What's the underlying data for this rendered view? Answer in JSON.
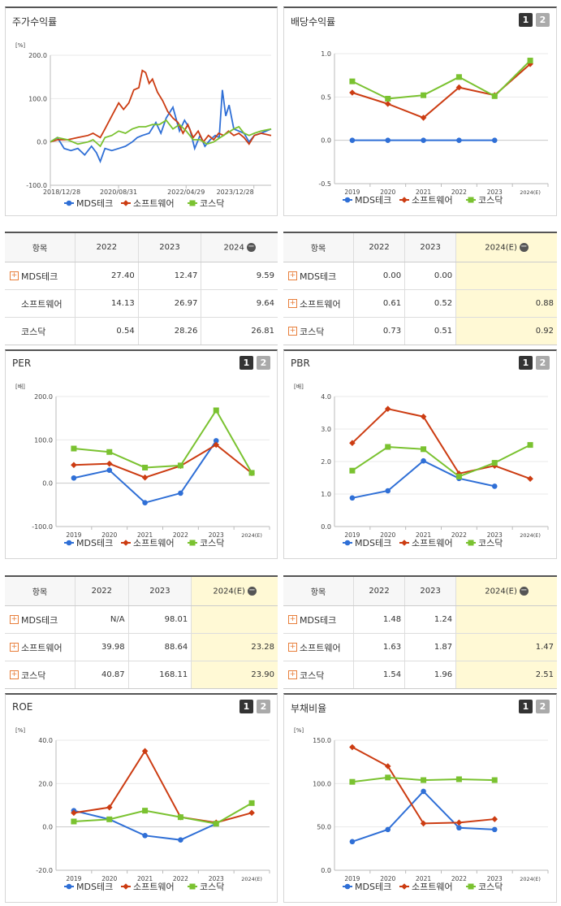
{
  "colors": {
    "MDS": "#2f6fd6",
    "SW": "#cc3c12",
    "KQ": "#7ac230"
  },
  "pager": {
    "one": "1",
    "two": "2"
  },
  "chart_data": [
    {
      "id": "price",
      "type": "line",
      "title": "주가수익률",
      "unit": "[%]",
      "ylim": [
        -100,
        200
      ],
      "yticks": [
        "200.0",
        "100.0",
        "0.0",
        "-100.0"
      ],
      "ytick_values": [
        200,
        100,
        0,
        -100
      ],
      "xticks": [
        "2018/12/28",
        "2020/08/31",
        "2022/04/29",
        "2023/12/28"
      ],
      "xrange": [
        "2018-12-28",
        "2024-05-31"
      ],
      "xtick_dates": [
        "2018-12-28",
        "2020-08-31",
        "2022-04-29",
        "2023-12-28"
      ],
      "series": [
        {
          "name": "MDS테크",
          "color_key": "MDS",
          "marker": "circle",
          "x": [
            "2018-12-28",
            "2019-03-01",
            "2019-05-01",
            "2019-07-01",
            "2019-09-01",
            "2019-11-01",
            "2020-01-01",
            "2020-02-15",
            "2020-03-20",
            "2020-05-01",
            "2020-07-01",
            "2020-09-01",
            "2020-11-01",
            "2021-01-01",
            "2021-02-15",
            "2021-04-01",
            "2021-06-01",
            "2021-08-01",
            "2021-09-15",
            "2021-11-01",
            "2022-01-01",
            "2022-03-01",
            "2022-04-15",
            "2022-06-01",
            "2022-07-15",
            "2022-09-01",
            "2022-10-15",
            "2022-12-01",
            "2023-01-15",
            "2023-02-20",
            "2023-03-20",
            "2023-04-20",
            "2023-05-20",
            "2023-07-01",
            "2023-08-15",
            "2023-10-01",
            "2023-11-15",
            "2024-01-01",
            "2024-03-01",
            "2024-05-31"
          ],
          "y": [
            0,
            10,
            -15,
            -20,
            -15,
            -30,
            -10,
            -25,
            -45,
            -15,
            -20,
            -15,
            -10,
            0,
            10,
            15,
            20,
            45,
            20,
            55,
            80,
            25,
            50,
            30,
            -15,
            15,
            -10,
            5,
            15,
            10,
            120,
            60,
            85,
            30,
            25,
            20,
            0,
            15,
            20,
            30
          ]
        },
        {
          "name": "소프트웨어",
          "color_key": "SW",
          "marker": "diamond",
          "x": [
            "2018-12-28",
            "2019-03-01",
            "2019-06-01",
            "2019-09-01",
            "2019-12-01",
            "2020-01-15",
            "2020-03-20",
            "2020-05-01",
            "2020-07-01",
            "2020-09-01",
            "2020-10-15",
            "2020-12-01",
            "2021-01-15",
            "2021-03-01",
            "2021-04-01",
            "2021-05-01",
            "2021-06-01",
            "2021-07-01",
            "2021-08-15",
            "2021-10-01",
            "2021-11-15",
            "2022-01-01",
            "2022-02-15",
            "2022-04-01",
            "2022-05-15",
            "2022-07-01",
            "2022-08-15",
            "2022-10-01",
            "2022-11-15",
            "2023-01-01",
            "2023-02-15",
            "2023-04-01",
            "2023-05-15",
            "2023-07-01",
            "2023-08-15",
            "2023-10-01",
            "2023-11-15",
            "2024-01-01",
            "2024-03-01",
            "2024-05-31"
          ],
          "y": [
            0,
            5,
            5,
            10,
            15,
            20,
            10,
            30,
            60,
            90,
            75,
            90,
            120,
            125,
            165,
            160,
            135,
            145,
            115,
            95,
            70,
            55,
            45,
            20,
            40,
            10,
            25,
            0,
            15,
            5,
            20,
            15,
            25,
            15,
            20,
            10,
            -5,
            15,
            20,
            15
          ]
        },
        {
          "name": "코스닥",
          "color_key": "KQ",
          "marker": "square",
          "x": [
            "2018-12-28",
            "2019-03-01",
            "2019-06-01",
            "2019-09-01",
            "2019-12-01",
            "2020-01-15",
            "2020-03-20",
            "2020-05-01",
            "2020-07-01",
            "2020-09-01",
            "2020-11-01",
            "2021-01-01",
            "2021-03-01",
            "2021-05-01",
            "2021-07-01",
            "2021-09-01",
            "2021-11-01",
            "2022-01-01",
            "2022-03-01",
            "2022-05-01",
            "2022-07-01",
            "2022-09-01",
            "2022-11-01",
            "2023-01-01",
            "2023-03-01",
            "2023-05-01",
            "2023-07-01",
            "2023-08-15",
            "2023-10-01",
            "2023-11-15",
            "2024-01-01",
            "2024-03-01",
            "2024-05-31"
          ],
          "y": [
            0,
            10,
            5,
            -5,
            0,
            5,
            -10,
            10,
            15,
            25,
            20,
            30,
            35,
            35,
            40,
            40,
            50,
            30,
            40,
            25,
            5,
            5,
            -5,
            0,
            10,
            20,
            30,
            35,
            20,
            15,
            20,
            25,
            30
          ]
        }
      ]
    },
    {
      "id": "dividend",
      "type": "line",
      "title": "배당수익률",
      "ylim": [
        -0.5,
        1.0
      ],
      "yticks": [
        "1.0",
        "0.5",
        "0.0",
        "-0.5"
      ],
      "ytick_values": [
        1.0,
        0.5,
        0.0,
        -0.5
      ],
      "categories": [
        "2019",
        "2020",
        "2021",
        "2022",
        "2023",
        "2024(E)"
      ],
      "series": [
        {
          "name": "MDS테크",
          "color_key": "MDS",
          "marker": "circle",
          "values": [
            0,
            0,
            0,
            0,
            0,
            null
          ]
        },
        {
          "name": "소프트웨어",
          "color_key": "SW",
          "marker": "diamond",
          "values": [
            0.55,
            0.42,
            0.26,
            0.61,
            0.52,
            0.88
          ]
        },
        {
          "name": "코스닥",
          "color_key": "KQ",
          "marker": "square",
          "values": [
            0.68,
            0.48,
            0.52,
            0.73,
            0.51,
            0.92
          ]
        }
      ]
    },
    {
      "id": "per",
      "type": "line",
      "title": "PER",
      "unit": "[배]",
      "ylim": [
        -100,
        200
      ],
      "yticks": [
        "200.0",
        "100.0",
        "0.0",
        "-100.0"
      ],
      "ytick_values": [
        200,
        100,
        0,
        -100
      ],
      "categories": [
        "2019",
        "2020",
        "2021",
        "2022",
        "2023",
        "2024(E)"
      ],
      "series": [
        {
          "name": "MDS테크",
          "color_key": "MDS",
          "marker": "circle",
          "values": [
            12,
            30,
            -45,
            -23,
            98.01,
            null
          ]
        },
        {
          "name": "소프트웨어",
          "color_key": "SW",
          "marker": "diamond",
          "values": [
            42,
            45,
            13,
            39.98,
            88.64,
            23.28
          ]
        },
        {
          "name": "코스닥",
          "color_key": "KQ",
          "marker": "square",
          "values": [
            80,
            72,
            36,
            40.87,
            168.11,
            23.9
          ]
        }
      ]
    },
    {
      "id": "pbr",
      "type": "line",
      "title": "PBR",
      "unit": "[배]",
      "ylim": [
        0,
        4
      ],
      "yticks": [
        "4.0",
        "3.0",
        "2.0",
        "1.0",
        "0.0"
      ],
      "ytick_values": [
        4,
        3,
        2,
        1,
        0
      ],
      "categories": [
        "2019",
        "2020",
        "2021",
        "2022",
        "2023",
        "2024(E)"
      ],
      "series": [
        {
          "name": "MDS테크",
          "color_key": "MDS",
          "marker": "circle",
          "values": [
            0.88,
            1.1,
            2.02,
            1.48,
            1.24,
            null
          ]
        },
        {
          "name": "소프트웨어",
          "color_key": "SW",
          "marker": "diamond",
          "values": [
            2.57,
            3.62,
            3.38,
            1.63,
            1.87,
            1.47
          ]
        },
        {
          "name": "코스닥",
          "color_key": "KQ",
          "marker": "square",
          "values": [
            1.72,
            2.45,
            2.38,
            1.54,
            1.96,
            2.51
          ]
        }
      ]
    },
    {
      "id": "roe",
      "type": "line",
      "title": "ROE",
      "unit": "[%]",
      "ylim": [
        -20,
        40
      ],
      "yticks": [
        "40.0",
        "20.0",
        "0.0",
        "-20.0"
      ],
      "ytick_values": [
        40,
        20,
        0,
        -20
      ],
      "categories": [
        "2019",
        "2020",
        "2021",
        "2022",
        "2023",
        "2024(E)"
      ],
      "series": [
        {
          "name": "MDS테크",
          "color_key": "MDS",
          "marker": "circle",
          "values": [
            7.5,
            3.5,
            -4,
            -6,
            1.5,
            null
          ]
        },
        {
          "name": "소프트웨어",
          "color_key": "SW",
          "marker": "diamond",
          "values": [
            6.5,
            9,
            35,
            4.5,
            2,
            6.5
          ]
        },
        {
          "name": "코스닥",
          "color_key": "KQ",
          "marker": "square",
          "values": [
            2.5,
            3.5,
            7.5,
            4.5,
            1.5,
            11
          ]
        }
      ]
    },
    {
      "id": "debt",
      "type": "line",
      "title": "부채비율",
      "unit": "[%]",
      "ylim": [
        0,
        150
      ],
      "yticks": [
        "150.0",
        "100.0",
        "50.0",
        "0.0"
      ],
      "ytick_values": [
        150,
        100,
        50,
        0
      ],
      "categories": [
        "2019",
        "2020",
        "2021",
        "2022",
        "2023",
        "2024(E)"
      ],
      "series": [
        {
          "name": "MDS테크",
          "color_key": "MDS",
          "marker": "circle",
          "values": [
            33,
            47,
            91,
            49,
            47,
            null
          ]
        },
        {
          "name": "소프트웨어",
          "color_key": "SW",
          "marker": "diamond",
          "values": [
            142,
            120,
            54,
            55,
            59,
            null
          ]
        },
        {
          "name": "코스닥",
          "color_key": "KQ",
          "marker": "square",
          "values": [
            102,
            107,
            104,
            105,
            104,
            null
          ]
        }
      ]
    }
  ],
  "legend": {
    "mds": "MDS테크",
    "sw": "소프트웨어",
    "kq": "코스닥"
  },
  "tables": {
    "return": {
      "headers": [
        "항목",
        "2022",
        "2023",
        "2024"
      ],
      "rows": [
        {
          "name": "MDS테크",
          "plus": true,
          "values": [
            "27.40",
            "12.47",
            "9.59"
          ]
        },
        {
          "name": "소프트웨어",
          "plus": false,
          "values": [
            "14.13",
            "26.97",
            "9.64"
          ]
        },
        {
          "name": "코스닥",
          "plus": false,
          "values": [
            "0.54",
            "28.26",
            "26.81"
          ]
        }
      ]
    },
    "dividend": {
      "headers": [
        "항목",
        "2022",
        "2023",
        "2024(E)"
      ],
      "rows": [
        {
          "name": "MDS테크",
          "plus": true,
          "values": [
            "0.00",
            "0.00",
            ""
          ]
        },
        {
          "name": "소프트웨어",
          "plus": true,
          "values": [
            "0.61",
            "0.52",
            "0.88"
          ]
        },
        {
          "name": "코스닥",
          "plus": true,
          "values": [
            "0.73",
            "0.51",
            "0.92"
          ]
        }
      ]
    },
    "per": {
      "headers": [
        "항목",
        "2022",
        "2023",
        "2024(E)"
      ],
      "rows": [
        {
          "name": "MDS테크",
          "plus": true,
          "values": [
            "N/A",
            "98.01",
            ""
          ]
        },
        {
          "name": "소프트웨어",
          "plus": true,
          "values": [
            "39.98",
            "88.64",
            "23.28"
          ]
        },
        {
          "name": "코스닥",
          "plus": true,
          "values": [
            "40.87",
            "168.11",
            "23.90"
          ]
        }
      ]
    },
    "pbr": {
      "headers": [
        "항목",
        "2022",
        "2023",
        "2024(E)"
      ],
      "rows": [
        {
          "name": "MDS테크",
          "plus": true,
          "values": [
            "1.48",
            "1.24",
            ""
          ]
        },
        {
          "name": "소프트웨어",
          "plus": true,
          "values": [
            "1.63",
            "1.87",
            "1.47"
          ]
        },
        {
          "name": "코스닥",
          "plus": true,
          "values": [
            "1.54",
            "1.96",
            "2.51"
          ]
        }
      ]
    }
  }
}
